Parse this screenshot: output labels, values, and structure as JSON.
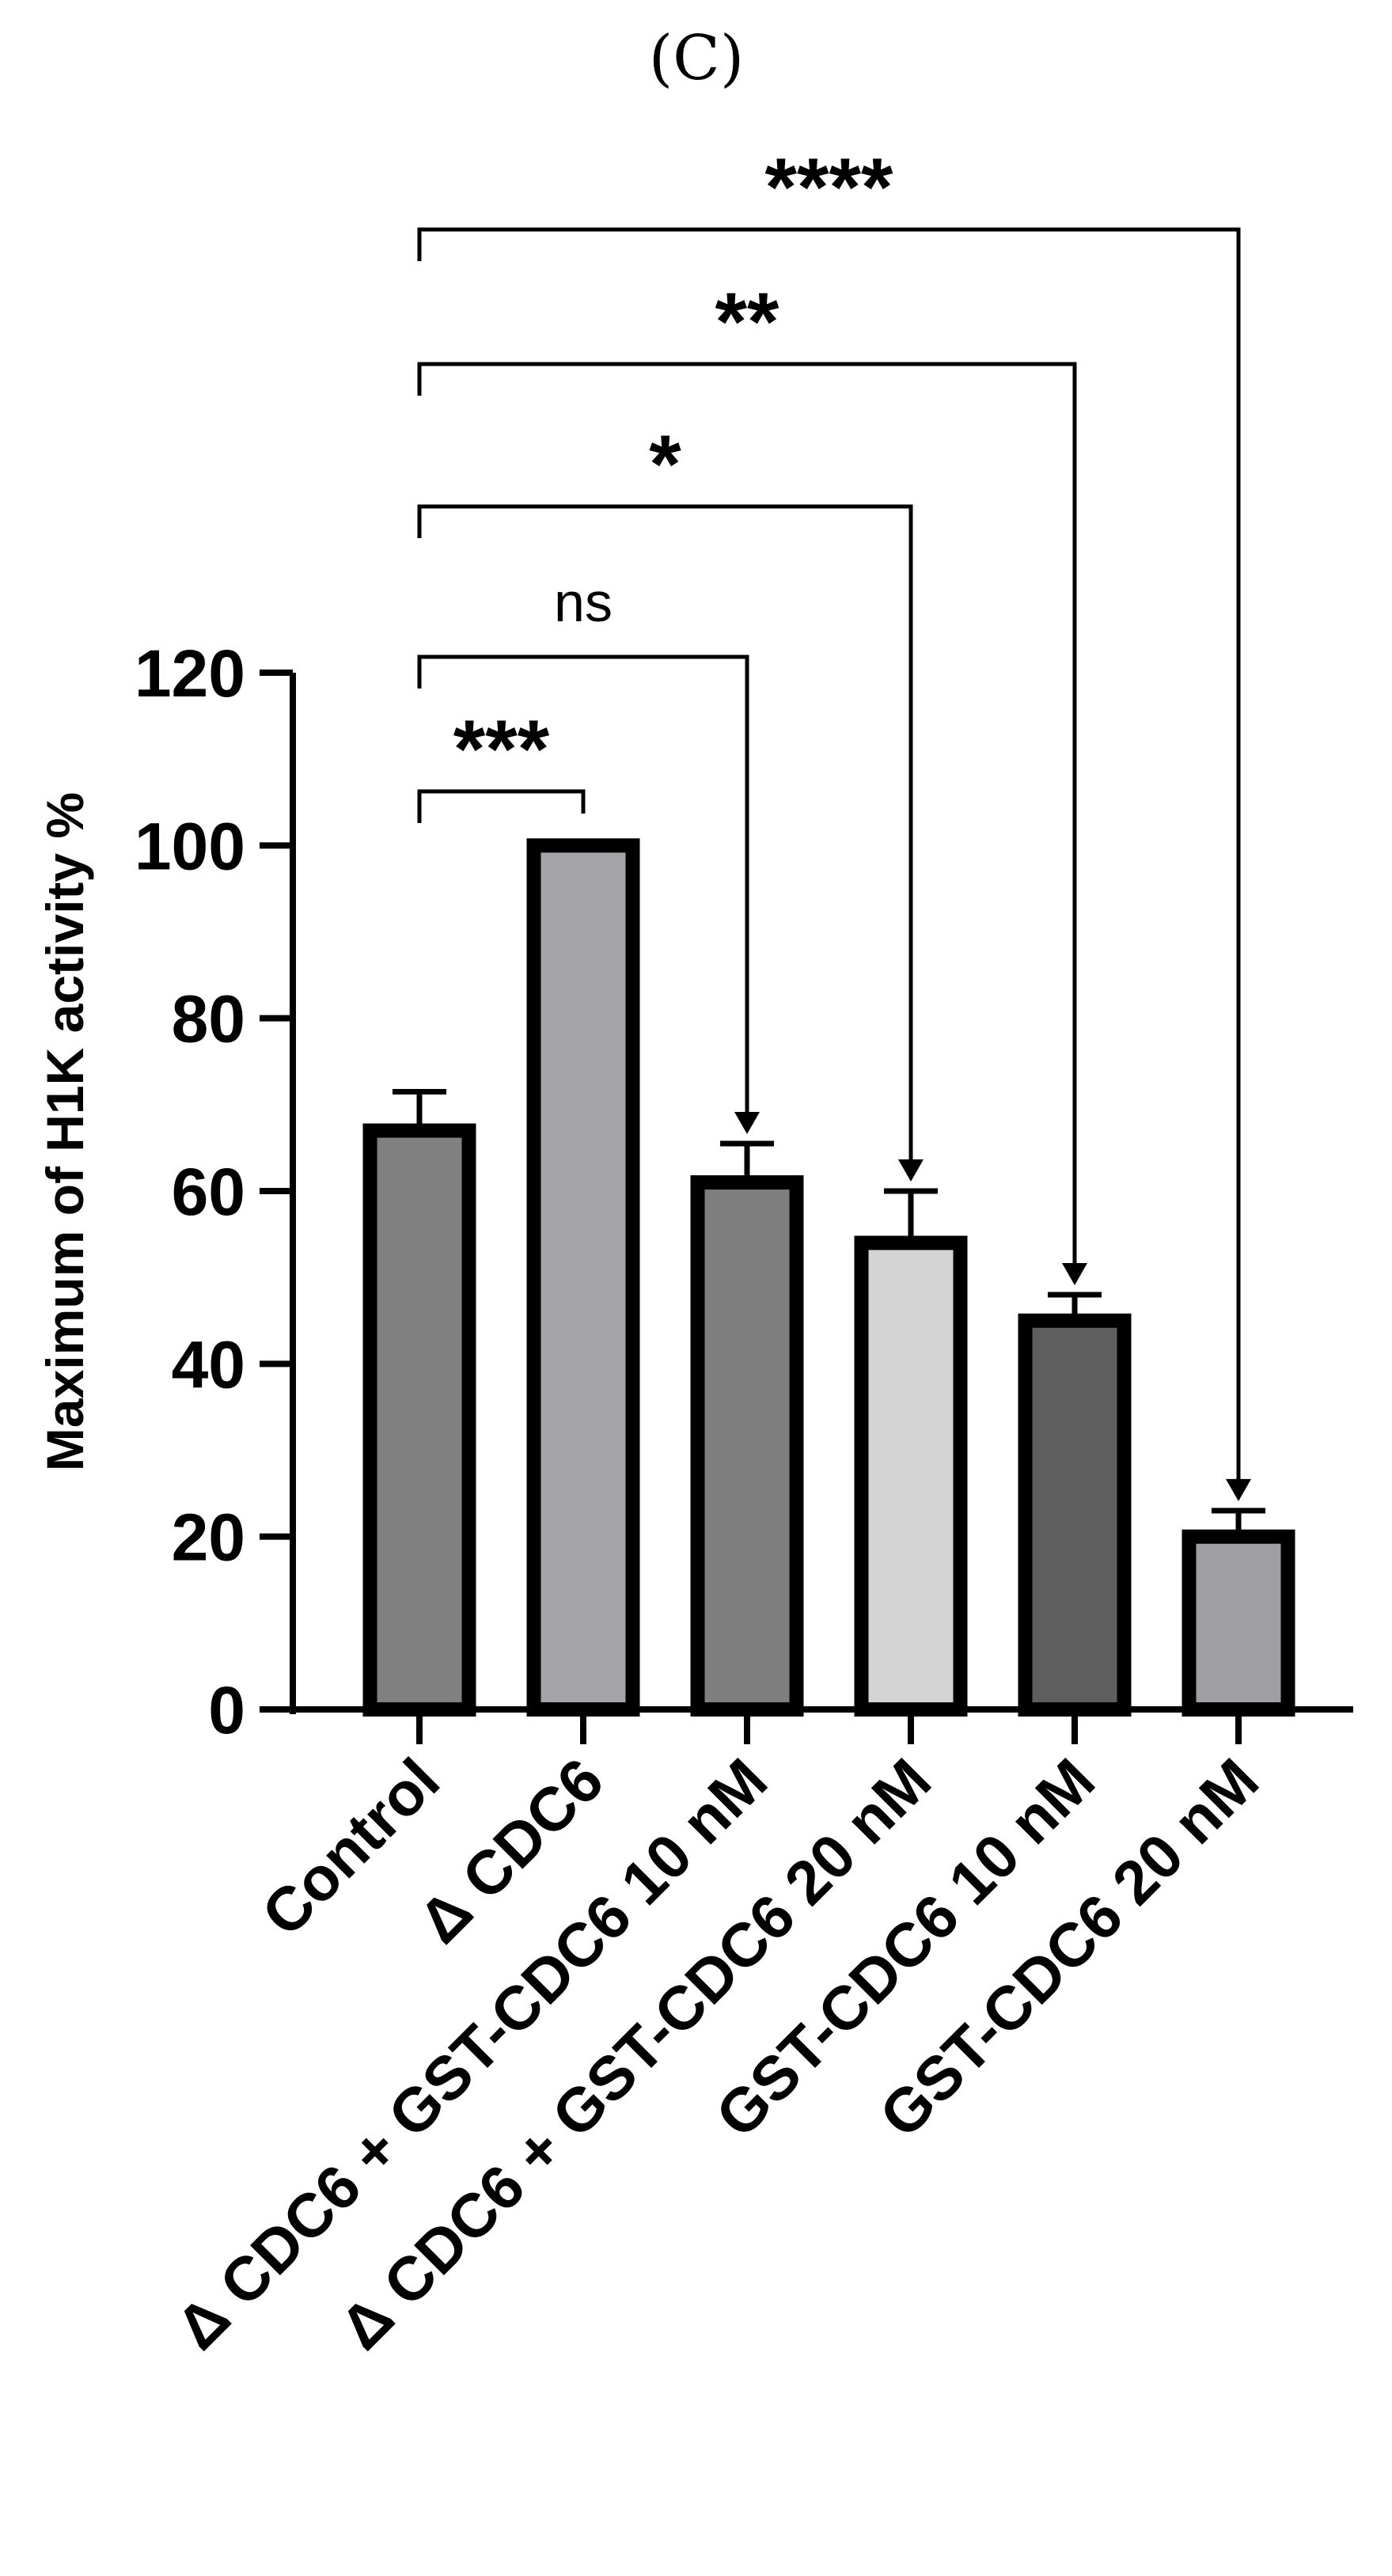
{
  "chart_data": {
    "type": "bar",
    "panel_label": "(C)",
    "title": "",
    "xlabel": "",
    "ylabel": "Maximum of H1K activity %",
    "ylim": [
      0,
      120
    ],
    "yticks": [
      0,
      20,
      40,
      60,
      80,
      100,
      120
    ],
    "categories": [
      "Control",
      "Δ CDC6",
      "Δ CDC6 + GST-CDC6 10 nM",
      "Δ CDC6 + GST-CDC6 20 nM",
      "GST-CDC6 10 nM",
      "GST-CDC6 20 nM"
    ],
    "values": [
      67,
      100,
      61,
      54,
      45,
      20
    ],
    "errors": [
      4.5,
      0,
      4.5,
      6,
      3,
      3
    ],
    "bar_colors": [
      "#808080",
      "#a3a3a8",
      "#7f7f7f",
      "#d4d4d4",
      "#5e5e5e",
      "#9e9ea3"
    ],
    "comparisons": [
      {
        "from": 0,
        "to": 1,
        "label": "***"
      },
      {
        "from": 0,
        "to": 2,
        "label": "ns"
      },
      {
        "from": 0,
        "to": 3,
        "label": "*"
      },
      {
        "from": 0,
        "to": 4,
        "label": "**"
      },
      {
        "from": 0,
        "to": 5,
        "label": "****"
      }
    ],
    "grid": false
  }
}
